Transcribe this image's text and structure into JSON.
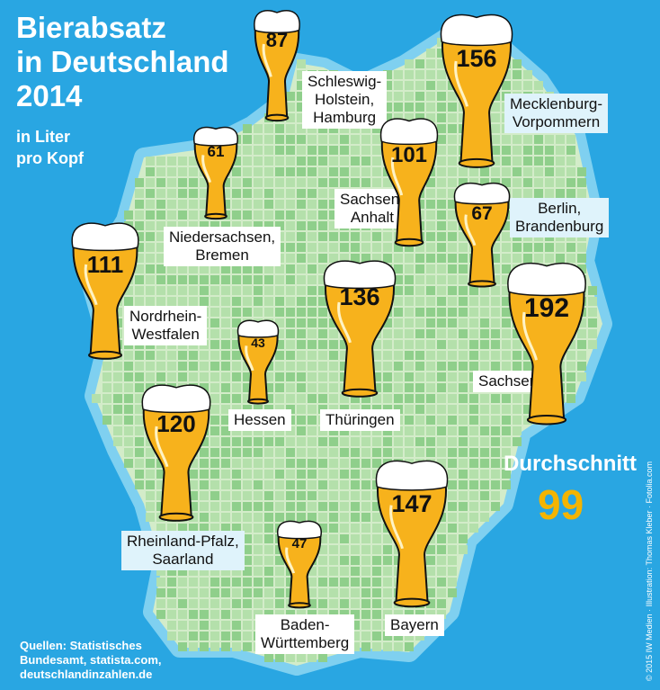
{
  "title_lines": [
    "Bierabsatz",
    "in Deutschland",
    "2014"
  ],
  "subtitle_lines": [
    "in Liter",
    "pro Kopf"
  ],
  "regions": [
    {
      "id": "schleswig-holstein-hamburg",
      "label_lines": [
        "Schleswig-",
        "Holstein,",
        "Hamburg"
      ],
      "value": "87"
    },
    {
      "id": "mecklenburg-vorpommern",
      "label_lines": [
        "Mecklenburg-",
        "Vorpommern"
      ],
      "value": "156"
    },
    {
      "id": "niedersachsen-bremen",
      "label_lines": [
        "Niedersachsen,",
        "Bremen"
      ],
      "value": "61"
    },
    {
      "id": "sachsen-anhalt",
      "label_lines": [
        "Sachsen-",
        "Anhalt"
      ],
      "value": "101"
    },
    {
      "id": "berlin-brandenburg",
      "label_lines": [
        "Berlin,",
        "Brandenburg"
      ],
      "value": "67"
    },
    {
      "id": "nordrhein-westfalen",
      "label_lines": [
        "Nordrhein-",
        "Westfalen"
      ],
      "value": "111"
    },
    {
      "id": "thueringen",
      "label_lines": [
        "Thüringen"
      ],
      "value": "136"
    },
    {
      "id": "sachsen",
      "label_lines": [
        "Sachsen"
      ],
      "value": "192"
    },
    {
      "id": "hessen",
      "label_lines": [
        "Hessen"
      ],
      "value": "43"
    },
    {
      "id": "rheinland-pfalz-saarland",
      "label_lines": [
        "Rheinland-Pfalz,",
        "Saarland"
      ],
      "value": "120"
    },
    {
      "id": "baden-wuerttemberg",
      "label_lines": [
        "Baden-",
        "Württemberg"
      ],
      "value": "47"
    },
    {
      "id": "bayern",
      "label_lines": [
        "Bayern"
      ],
      "value": "147"
    }
  ],
  "average": {
    "label": "Durchschnitt",
    "value": "99"
  },
  "sources_lines": [
    "Quellen: Statistisches",
    "Bundesamt, statista.com,",
    "deutschlandinzahlen.de"
  ],
  "credit": "© 2015 IW Medien · Illustration: Thomas Kleber · Fotolia.com",
  "colors": {
    "sea": "#29a6e2",
    "land": "#d3ecc9",
    "cell_dark": "#8fcf8b",
    "beer": "#f7b21c",
    "foam": "#ffffff",
    "average": "#f4b400"
  }
}
